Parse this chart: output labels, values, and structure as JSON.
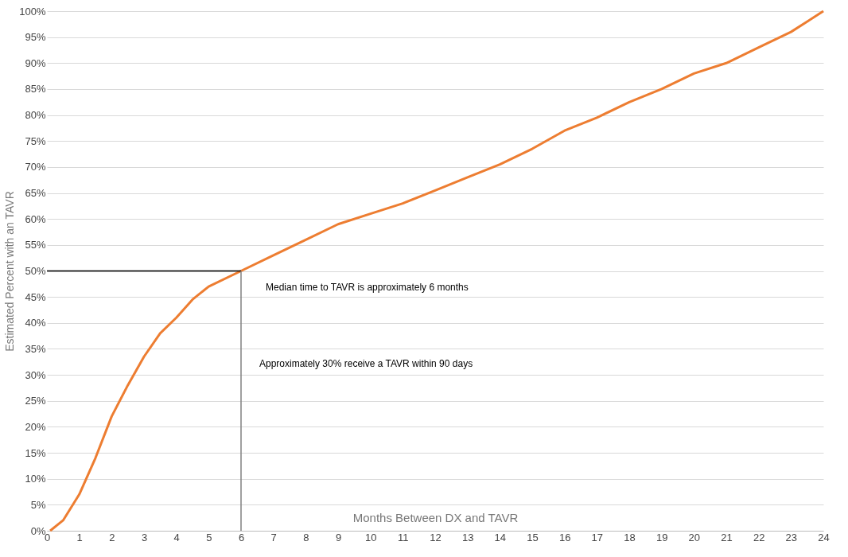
{
  "chart_data": {
    "type": "line",
    "xlabel": "Months Between DX and TAVR",
    "ylabel": "Estimated Percent with an TAVR",
    "xlim": [
      0,
      24
    ],
    "xticks": [
      0,
      1,
      2,
      3,
      4,
      5,
      6,
      7,
      8,
      9,
      10,
      11,
      12,
      13,
      14,
      15,
      16,
      17,
      18,
      19,
      20,
      21,
      22,
      23,
      24
    ],
    "ylim": [
      0,
      100
    ],
    "yticks": [
      {
        "value": 0,
        "label": "0%"
      },
      {
        "value": 5,
        "label": "5%"
      },
      {
        "value": 10,
        "label": "10%"
      },
      {
        "value": 15,
        "label": "15%"
      },
      {
        "value": 20,
        "label": "20%"
      },
      {
        "value": 25,
        "label": "25%"
      },
      {
        "value": 30,
        "label": "30%"
      },
      {
        "value": 35,
        "label": "35%"
      },
      {
        "value": 40,
        "label": "40%"
      },
      {
        "value": 45,
        "label": "45%"
      },
      {
        "value": 50,
        "label": "50%"
      },
      {
        "value": 55,
        "label": "55%"
      },
      {
        "value": 60,
        "label": "60%"
      },
      {
        "value": 65,
        "label": "65%"
      },
      {
        "value": 70,
        "label": "70%"
      },
      {
        "value": 75,
        "label": "75%"
      },
      {
        "value": 80,
        "label": "80%"
      },
      {
        "value": 85,
        "label": "85%"
      },
      {
        "value": 90,
        "label": "90%"
      },
      {
        "value": 95,
        "label": "95%"
      },
      {
        "value": 100,
        "label": "100%"
      }
    ],
    "grid": "y",
    "marker": "none",
    "line_style": "solid",
    "series": [
      {
        "color": "#ed7d31",
        "x": [
          0.1,
          0.5,
          1,
          1.5,
          2,
          2.5,
          3,
          3.5,
          4,
          4.5,
          5,
          6,
          7,
          8,
          9,
          10,
          11,
          12,
          13,
          14,
          15,
          16,
          17,
          18,
          19,
          20,
          21,
          22,
          23,
          24
        ],
        "values": [
          0,
          2,
          7,
          14,
          22,
          28,
          33.5,
          38,
          41,
          44.5,
          47,
          50,
          53,
          56,
          59,
          61,
          63,
          65.5,
          68,
          70.5,
          73.5,
          77,
          79.5,
          82.5,
          85,
          88,
          90,
          93,
          96,
          100
        ]
      },
      {
        "color": "#000000",
        "x": [
          0,
          6
        ],
        "values": [
          50,
          50
        ]
      },
      {
        "color": "#808080",
        "x": [
          6,
          6
        ],
        "values": [
          50,
          0
        ]
      }
    ],
    "annotations": [
      "Median time to TAVR is approximately 6 months",
      "Approximately 30% receive a TAVR within 90 days"
    ]
  }
}
